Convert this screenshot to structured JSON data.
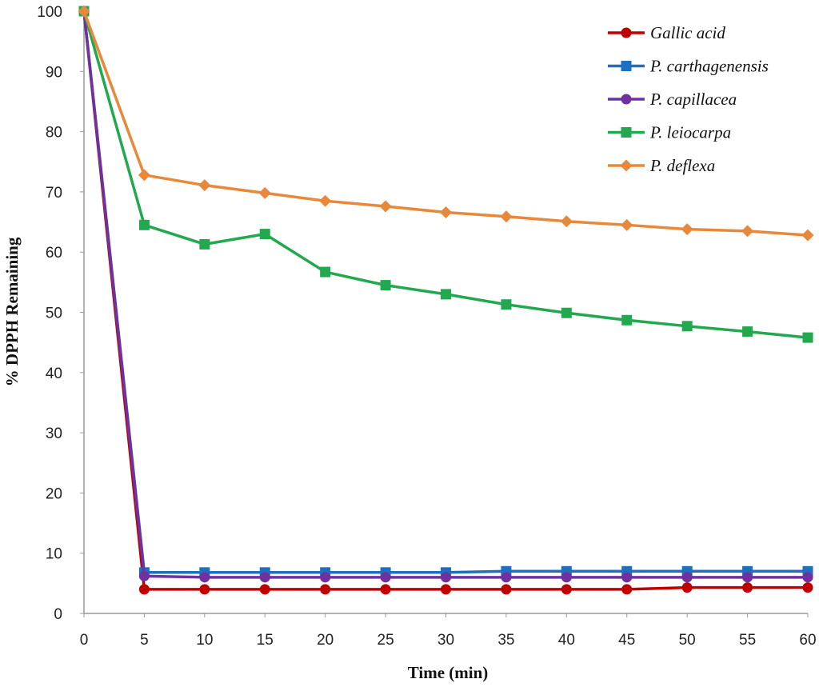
{
  "chart_data": {
    "type": "line",
    "title": "",
    "xlabel": "Time (min)",
    "ylabel": "% DPPH Remaining",
    "xlim": [
      0,
      60
    ],
    "ylim": [
      0,
      100
    ],
    "x": [
      0,
      5,
      10,
      15,
      20,
      25,
      30,
      35,
      40,
      45,
      50,
      55,
      60
    ],
    "x_ticks": [
      "0",
      "5",
      "10",
      "15",
      "20",
      "25",
      "30",
      "35",
      "40",
      "45",
      "50",
      "55",
      "60"
    ],
    "y_ticks": [
      "0",
      "10",
      "20",
      "30",
      "40",
      "50",
      "60",
      "70",
      "80",
      "90",
      "100"
    ],
    "grid": false,
    "legend_position": "top-right",
    "series": [
      {
        "name": "Gallic acid",
        "color": "#c00000",
        "marker": "circle",
        "values": [
          100,
          4.0,
          4.0,
          4.0,
          4.0,
          4.0,
          4.0,
          4.0,
          4.0,
          4.0,
          4.3,
          4.3,
          4.3
        ]
      },
      {
        "name": "P. carthagenensis",
        "color": "#1f6fc0",
        "marker": "square",
        "values": [
          100,
          6.8,
          6.8,
          6.8,
          6.8,
          6.8,
          6.8,
          7.0,
          7.0,
          7.0,
          7.0,
          7.0,
          7.0
        ]
      },
      {
        "name": "P. capillacea",
        "color": "#7030a0",
        "marker": "circle",
        "values": [
          100,
          6.2,
          6.0,
          6.0,
          6.0,
          6.0,
          6.0,
          6.0,
          6.0,
          6.0,
          6.0,
          6.0,
          6.0
        ]
      },
      {
        "name": "P. leiocarpa",
        "color": "#22a84e",
        "marker": "square",
        "values": [
          100,
          64.5,
          61.3,
          63.0,
          56.7,
          54.5,
          53.0,
          51.3,
          49.9,
          48.7,
          47.7,
          46.8,
          45.8
        ]
      },
      {
        "name": "P. deflexa",
        "color": "#e8883a",
        "marker": "diamond",
        "values": [
          100,
          72.8,
          71.1,
          69.8,
          68.5,
          67.6,
          66.6,
          65.9,
          65.1,
          64.5,
          63.8,
          63.5,
          62.8
        ]
      }
    ]
  }
}
